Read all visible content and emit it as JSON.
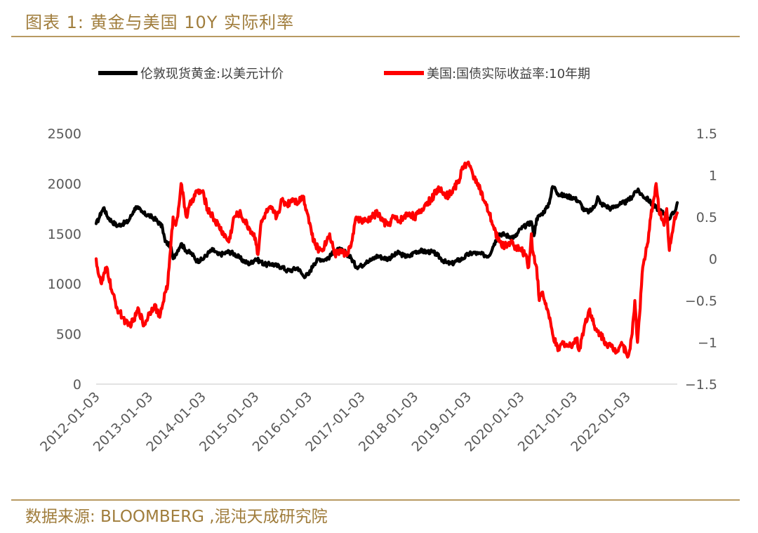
{
  "header": {
    "title": "图表 1: 黄金与美国 10Y 实际利率"
  },
  "footer": {
    "source": "数据来源: BLOOMBERG ,混沌天成研究院"
  },
  "colors": {
    "gold_series": "#000000",
    "yield_series": "#ff0000",
    "accent": "#b89a62",
    "axis_text": "#595959"
  },
  "chart_data": {
    "type": "line",
    "title": "",
    "legend_position": "top",
    "grid": false,
    "x_tick_labels": [
      "2012-01-03",
      "2013-01-03",
      "2014-01-03",
      "2015-01-03",
      "2016-01-03",
      "2017-01-03",
      "2018-01-03",
      "2019-01-03",
      "2020-01-03",
      "2021-01-03",
      "2022-01-03"
    ],
    "x_range": [
      2012.0,
      2022.95
    ],
    "y_left": {
      "range": [
        0,
        2500
      ],
      "ticks": [
        0,
        500,
        1000,
        1500,
        2000,
        2500
      ],
      "tick_labels": [
        "0",
        "500",
        "1000",
        "1500",
        "2000",
        "2500"
      ]
    },
    "y_right": {
      "range": [
        -1.5,
        1.5
      ],
      "ticks": [
        -1.5,
        -1,
        -0.5,
        0,
        0.5,
        1,
        1.5
      ],
      "tick_labels": [
        "-1.5",
        "-1",
        "-0.5",
        "0",
        "0.5",
        "1",
        "1.5"
      ]
    },
    "series": [
      {
        "name": "伦敦现货黄金:以美元计价",
        "axis": "left",
        "color": "#000000",
        "x": [
          2012.0,
          2012.05,
          2012.1,
          2012.15,
          2012.2,
          2012.3,
          2012.4,
          2012.5,
          2012.6,
          2012.7,
          2012.75,
          2012.8,
          2012.85,
          2012.9,
          2013.0,
          2013.1,
          2013.2,
          2013.25,
          2013.3,
          2013.4,
          2013.45,
          2013.5,
          2013.6,
          2013.7,
          2013.8,
          2013.9,
          2014.0,
          2014.1,
          2014.2,
          2014.3,
          2014.4,
          2014.5,
          2014.6,
          2014.7,
          2014.8,
          2014.9,
          2015.0,
          2015.1,
          2015.2,
          2015.3,
          2015.4,
          2015.5,
          2015.6,
          2015.7,
          2015.8,
          2015.9,
          2016.0,
          2016.1,
          2016.2,
          2016.3,
          2016.4,
          2016.5,
          2016.6,
          2016.7,
          2016.8,
          2016.9,
          2017.0,
          2017.1,
          2017.2,
          2017.3,
          2017.4,
          2017.5,
          2017.6,
          2017.7,
          2017.8,
          2017.9,
          2018.0,
          2018.1,
          2018.2,
          2018.3,
          2018.4,
          2018.5,
          2018.6,
          2018.7,
          2018.8,
          2018.9,
          2019.0,
          2019.1,
          2019.2,
          2019.3,
          2019.4,
          2019.5,
          2019.6,
          2019.7,
          2019.8,
          2019.9,
          2020.0,
          2020.1,
          2020.2,
          2020.25,
          2020.3,
          2020.4,
          2020.5,
          2020.55,
          2020.6,
          2020.65,
          2020.7,
          2020.8,
          2020.9,
          2021.0,
          2021.1,
          2021.2,
          2021.3,
          2021.4,
          2021.45,
          2021.5,
          2021.6,
          2021.7,
          2021.8,
          2021.9,
          2022.0,
          2022.1,
          2022.15,
          2022.2,
          2022.3,
          2022.4,
          2022.5,
          2022.6,
          2022.7,
          2022.8,
          2022.9,
          2022.95
        ],
        "values": [
          1600,
          1650,
          1720,
          1760,
          1680,
          1620,
          1580,
          1600,
          1620,
          1720,
          1770,
          1750,
          1720,
          1700,
          1680,
          1650,
          1600,
          1560,
          1420,
          1380,
          1250,
          1300,
          1400,
          1330,
          1300,
          1230,
          1240,
          1300,
          1340,
          1290,
          1300,
          1320,
          1300,
          1260,
          1220,
          1200,
          1250,
          1220,
          1190,
          1200,
          1180,
          1170,
          1130,
          1140,
          1160,
          1080,
          1090,
          1200,
          1250,
          1240,
          1270,
          1330,
          1340,
          1310,
          1260,
          1170,
          1180,
          1230,
          1240,
          1280,
          1260,
          1250,
          1280,
          1310,
          1280,
          1270,
          1320,
          1330,
          1320,
          1320,
          1300,
          1250,
          1210,
          1200,
          1230,
          1250,
          1290,
          1310,
          1300,
          1290,
          1280,
          1400,
          1500,
          1490,
          1470,
          1470,
          1550,
          1580,
          1620,
          1480,
          1650,
          1700,
          1760,
          1840,
          1970,
          1950,
          1900,
          1880,
          1870,
          1860,
          1820,
          1730,
          1720,
          1780,
          1870,
          1800,
          1780,
          1750,
          1780,
          1800,
          1820,
          1870,
          1920,
          1930,
          1880,
          1840,
          1780,
          1740,
          1700,
          1650,
          1720,
          1810
        ]
      },
      {
        "name": "美国:国债实际收益率:10年期",
        "axis": "right",
        "color": "#ff0000",
        "x": [
          2012.0,
          2012.05,
          2012.1,
          2012.2,
          2012.3,
          2012.4,
          2012.5,
          2012.6,
          2012.7,
          2012.8,
          2012.9,
          2013.0,
          2013.1,
          2013.2,
          2013.3,
          2013.35,
          2013.4,
          2013.45,
          2013.5,
          2013.55,
          2013.6,
          2013.7,
          2013.8,
          2013.9,
          2014.0,
          2014.1,
          2014.2,
          2014.3,
          2014.4,
          2014.5,
          2014.6,
          2014.7,
          2014.8,
          2014.9,
          2015.0,
          2015.05,
          2015.1,
          2015.2,
          2015.3,
          2015.4,
          2015.5,
          2015.6,
          2015.7,
          2015.8,
          2015.9,
          2016.0,
          2016.1,
          2016.2,
          2016.3,
          2016.4,
          2016.5,
          2016.6,
          2016.7,
          2016.8,
          2016.85,
          2016.9,
          2017.0,
          2017.1,
          2017.2,
          2017.3,
          2017.4,
          2017.5,
          2017.6,
          2017.7,
          2017.8,
          2017.9,
          2018.0,
          2018.1,
          2018.2,
          2018.3,
          2018.4,
          2018.5,
          2018.6,
          2018.7,
          2018.8,
          2018.85,
          2018.9,
          2019.0,
          2019.1,
          2019.2,
          2019.3,
          2019.4,
          2019.5,
          2019.6,
          2019.7,
          2019.8,
          2019.9,
          2020.0,
          2020.1,
          2020.15,
          2020.2,
          2020.22,
          2020.3,
          2020.35,
          2020.4,
          2020.5,
          2020.6,
          2020.7,
          2020.8,
          2020.9,
          2021.0,
          2021.05,
          2021.1,
          2021.2,
          2021.3,
          2021.4,
          2021.5,
          2021.6,
          2021.7,
          2021.8,
          2021.9,
          2022.0,
          2022.05,
          2022.1,
          2022.15,
          2022.2,
          2022.3,
          2022.4,
          2022.45,
          2022.5,
          2022.55,
          2022.6,
          2022.7,
          2022.75,
          2022.8,
          2022.85,
          2022.9,
          2022.95
        ],
        "values": [
          0.0,
          -0.2,
          -0.3,
          -0.1,
          -0.4,
          -0.6,
          -0.7,
          -0.8,
          -0.75,
          -0.6,
          -0.8,
          -0.65,
          -0.55,
          -0.7,
          -0.4,
          -0.3,
          0.1,
          0.5,
          0.4,
          0.6,
          0.9,
          0.5,
          0.7,
          0.8,
          0.8,
          0.6,
          0.5,
          0.4,
          0.3,
          0.2,
          0.5,
          0.55,
          0.45,
          0.35,
          0.25,
          0.05,
          0.4,
          0.55,
          0.6,
          0.5,
          0.7,
          0.65,
          0.72,
          0.68,
          0.75,
          0.5,
          0.2,
          0.1,
          0.15,
          0.3,
          0.05,
          0.1,
          0.05,
          0.15,
          0.3,
          0.5,
          0.45,
          0.45,
          0.5,
          0.55,
          0.45,
          0.4,
          0.5,
          0.45,
          0.5,
          0.55,
          0.5,
          0.55,
          0.65,
          0.7,
          0.8,
          0.85,
          0.75,
          0.8,
          0.9,
          0.95,
          1.1,
          1.15,
          1.0,
          0.9,
          0.7,
          0.55,
          0.35,
          0.2,
          0.15,
          0.2,
          0.15,
          0.1,
          0.05,
          -0.1,
          0.3,
          0.1,
          -0.1,
          -0.5,
          -0.4,
          -0.6,
          -0.9,
          -1.1,
          -1.0,
          -1.05,
          -1.0,
          -0.95,
          -1.1,
          -0.8,
          -0.6,
          -0.85,
          -0.9,
          -1.0,
          -1.05,
          -1.1,
          -1.0,
          -1.15,
          -1.1,
          -0.9,
          -0.5,
          -1.0,
          -0.1,
          0.2,
          0.5,
          0.7,
          0.9,
          0.6,
          0.4,
          0.6,
          0.1,
          0.3,
          0.5,
          0.55
        ]
      }
    ]
  }
}
